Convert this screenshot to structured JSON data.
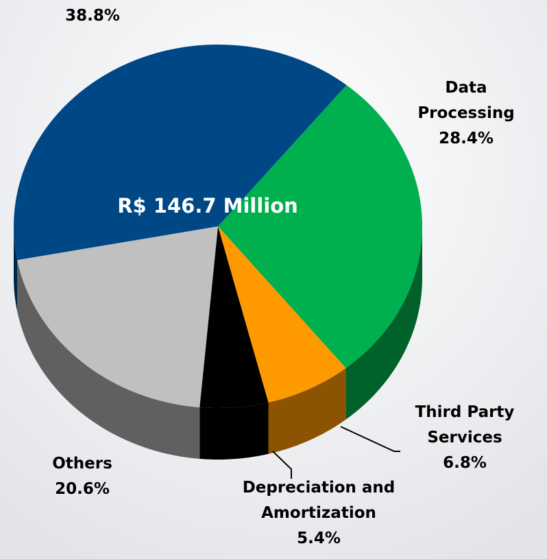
{
  "chart_data": {
    "type": "pie",
    "annotation": "R$ 146.7 Million",
    "categories": [
      null,
      "Data Processing",
      "Third Party Services",
      "Depreciation and Amortization",
      "Others"
    ],
    "values": [
      38.8,
      28.4,
      6.8,
      5.4,
      20.6
    ],
    "value_labels": [
      "38.8%",
      "28.4%",
      "6.8%",
      "5.4%",
      "20.6%"
    ],
    "colors": [
      "#004786",
      "#00b04f",
      "#ff9900",
      "#000000",
      "#c0c0c0"
    ]
  }
}
